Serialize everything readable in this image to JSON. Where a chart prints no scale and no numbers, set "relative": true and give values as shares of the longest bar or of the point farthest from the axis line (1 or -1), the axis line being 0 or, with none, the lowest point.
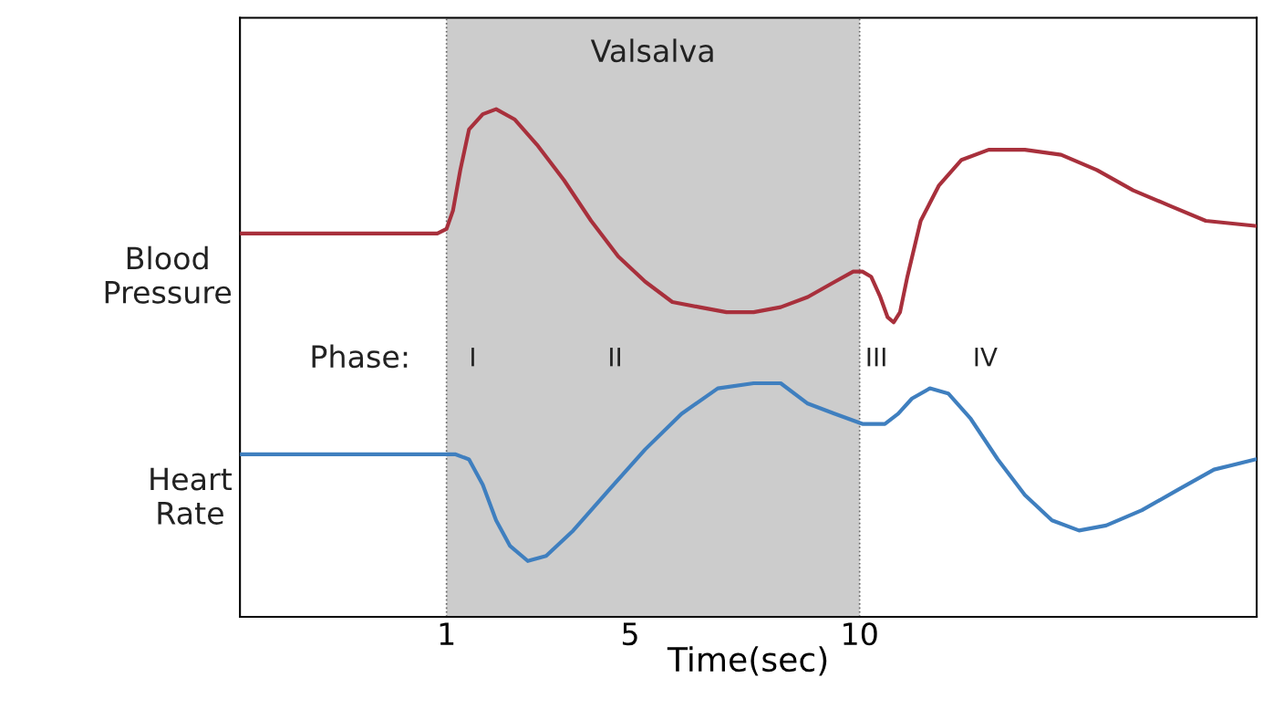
{
  "chart_data": {
    "type": "line",
    "relative": true,
    "xlabel": "Time(sec)",
    "xlim": [
      -3.5,
      18.65
    ],
    "xticks": [
      1,
      5,
      10
    ],
    "grid": false,
    "legend": false,
    "tick_labels": "x",
    "line_style": "solid",
    "marker": "none",
    "bands": [
      {
        "axis": "x",
        "from": 1,
        "to": 10,
        "label": "Valsalva",
        "color": "#cccccc"
      }
    ],
    "ref_lines": [
      {
        "axis": "x",
        "value": 1,
        "line_style": "dotted",
        "color": "#666666"
      },
      {
        "axis": "x",
        "value": 10,
        "line_style": "dotted",
        "color": "#666666"
      }
    ],
    "annotations": [
      "Phase:",
      "I",
      "II",
      "III",
      "IV"
    ],
    "series": [
      {
        "name": "Blood Pressure",
        "color": "#a8303c",
        "x": [
          -3.47,
          0.8,
          1.0,
          1.14,
          1.3,
          1.49,
          1.79,
          2.08,
          2.48,
          2.97,
          3.56,
          4.15,
          4.74,
          5.33,
          5.92,
          6.51,
          7.1,
          7.69,
          8.28,
          8.87,
          9.46,
          9.86,
          10.06,
          10.25,
          10.45,
          10.61,
          10.74,
          10.88,
          11.04,
          11.33,
          11.73,
          12.22,
          12.81,
          13.6,
          14.39,
          15.17,
          15.96,
          16.75,
          17.54,
          18.62
        ],
        "values": [
          0.755,
          0.755,
          0.764,
          0.8,
          0.88,
          0.96,
          0.99,
          1.0,
          0.98,
          0.93,
          0.86,
          0.78,
          0.71,
          0.66,
          0.62,
          0.61,
          0.6,
          0.6,
          0.61,
          0.63,
          0.66,
          0.68,
          0.68,
          0.67,
          0.63,
          0.59,
          0.58,
          0.6,
          0.67,
          0.78,
          0.85,
          0.9,
          0.92,
          0.92,
          0.91,
          0.88,
          0.84,
          0.81,
          0.78,
          0.77
        ]
      },
      {
        "name": "Heart Rate",
        "color": "#3f7fbf",
        "x": [
          -3.47,
          1.2,
          1.49,
          1.79,
          2.08,
          2.38,
          2.77,
          3.17,
          3.76,
          4.54,
          5.33,
          6.12,
          6.91,
          7.69,
          8.28,
          8.87,
          9.46,
          10.06,
          10.55,
          10.84,
          11.14,
          11.53,
          11.93,
          12.42,
          13.01,
          13.6,
          14.19,
          14.78,
          15.37,
          16.15,
          16.93,
          17.72,
          18.62
        ],
        "values": [
          0.32,
          0.32,
          0.31,
          0.26,
          0.19,
          0.14,
          0.11,
          0.12,
          0.17,
          0.25,
          0.33,
          0.4,
          0.45,
          0.46,
          0.46,
          0.42,
          0.4,
          0.38,
          0.38,
          0.4,
          0.43,
          0.45,
          0.44,
          0.39,
          0.31,
          0.24,
          0.19,
          0.17,
          0.18,
          0.21,
          0.25,
          0.29,
          0.31
        ]
      }
    ]
  }
}
